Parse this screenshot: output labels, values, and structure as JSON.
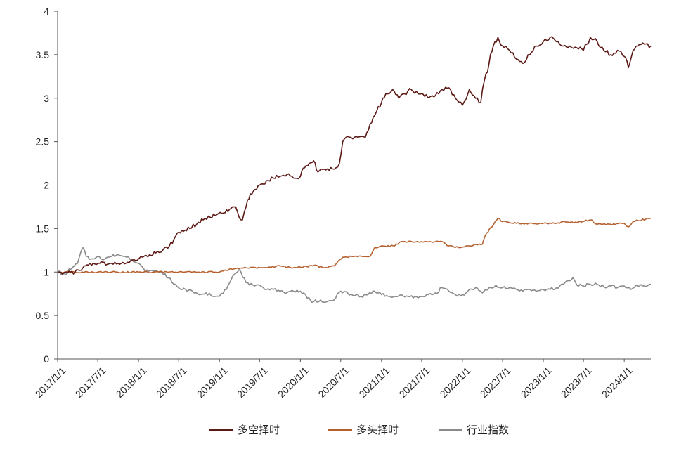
{
  "chart_data": {
    "type": "line",
    "title": "",
    "xlabel": "",
    "ylabel": "",
    "ylim": [
      0,
      4
    ],
    "yticks": [
      {
        "value": 0,
        "label": "0"
      },
      {
        "value": 0.5,
        "label": "0.5"
      },
      {
        "value": 1,
        "label": "1"
      },
      {
        "value": 1.5,
        "label": "1.5"
      },
      {
        "value": 2,
        "label": "2"
      },
      {
        "value": 2.5,
        "label": "2.5"
      },
      {
        "value": 3,
        "label": "3"
      },
      {
        "value": 3.5,
        "label": "3.5"
      },
      {
        "value": 4,
        "label": "4"
      }
    ],
    "xlim": [
      "2017/1/1",
      "2024/4/30"
    ],
    "xticks": [
      "2017/1/1",
      "2017/7/1",
      "2018/1/1",
      "2018/7/1",
      "2019/1/1",
      "2019/7/1",
      "2020/1/1",
      "2020/7/1",
      "2021/1/1",
      "2021/7/1",
      "2022/1/1",
      "2022/7/1",
      "2023/1/1",
      "2023/7/1",
      "2024/1/1"
    ],
    "grid": false,
    "legend_position": "bottom",
    "series": [
      {
        "name": "多空择时",
        "color": "#5c1a16",
        "points": [
          [
            "2017/1/1",
            1.0
          ],
          [
            "2017/2/15",
            0.99
          ],
          [
            "2017/3/20",
            1.0
          ],
          [
            "2017/4/10",
            1.02
          ],
          [
            "2017/4/25",
            1.05
          ],
          [
            "2017/5/20",
            1.08
          ],
          [
            "2017/6/10",
            1.1
          ],
          [
            "2017/7/10",
            1.1
          ],
          [
            "2017/9/1",
            1.1
          ],
          [
            "2017/10/15",
            1.1
          ],
          [
            "2017/11/20",
            1.11
          ],
          [
            "2017/12/20",
            1.13
          ],
          [
            "2018/1/20",
            1.17
          ],
          [
            "2018/2/20",
            1.2
          ],
          [
            "2018/3/20",
            1.22
          ],
          [
            "2018/4/20",
            1.25
          ],
          [
            "2018/5/20",
            1.3
          ],
          [
            "2018/6/10",
            1.38
          ],
          [
            "2018/6/25",
            1.45
          ],
          [
            "2018/7/15",
            1.48
          ],
          [
            "2018/8/20",
            1.5
          ],
          [
            "2018/9/20",
            1.55
          ],
          [
            "2018/10/20",
            1.6
          ],
          [
            "2018/11/20",
            1.63
          ],
          [
            "2018/12/20",
            1.66
          ],
          [
            "2019/1/20",
            1.68
          ],
          [
            "2019/2/15",
            1.72
          ],
          [
            "2019/3/15",
            1.75
          ],
          [
            "2019/4/1",
            1.62
          ],
          [
            "2019/4/15",
            1.6
          ],
          [
            "2019/5/1",
            1.75
          ],
          [
            "2019/5/20",
            1.9
          ],
          [
            "2019/6/10",
            1.95
          ],
          [
            "2019/7/1",
            2.0
          ],
          [
            "2019/8/1",
            2.05
          ],
          [
            "2019/9/1",
            2.08
          ],
          [
            "2019/10/1",
            2.1
          ],
          [
            "2019/11/1",
            2.12
          ],
          [
            "2019/12/1",
            2.08
          ],
          [
            "2020/1/1",
            2.1
          ],
          [
            "2020/1/20",
            2.2
          ],
          [
            "2020/2/10",
            2.25
          ],
          [
            "2020/3/1",
            2.28
          ],
          [
            "2020/3/20",
            2.15
          ],
          [
            "2020/4/10",
            2.18
          ],
          [
            "2020/5/10",
            2.17
          ],
          [
            "2020/6/10",
            2.2
          ],
          [
            "2020/6/25",
            2.25
          ],
          [
            "2020/7/10",
            2.5
          ],
          [
            "2020/7/25",
            2.55
          ],
          [
            "2020/9/1",
            2.55
          ],
          [
            "2020/10/20",
            2.55
          ],
          [
            "2020/11/10",
            2.7
          ],
          [
            "2020/12/10",
            2.85
          ],
          [
            "2021/1/1",
            2.95
          ],
          [
            "2021/1/20",
            3.05
          ],
          [
            "2021/2/20",
            3.1
          ],
          [
            "2021/3/20",
            3.0
          ],
          [
            "2021/4/15",
            3.05
          ],
          [
            "2021/5/15",
            3.1
          ],
          [
            "2021/6/15",
            3.05
          ],
          [
            "2021/7/15",
            3.02
          ],
          [
            "2021/9/1",
            3.03
          ],
          [
            "2021/10/1",
            3.1
          ],
          [
            "2021/11/1",
            3.12
          ],
          [
            "2021/12/1",
            3.0
          ],
          [
            "2022/1/1",
            2.92
          ],
          [
            "2022/2/1",
            3.1
          ],
          [
            "2022/3/1",
            3.0
          ],
          [
            "2022/3/25",
            2.95
          ],
          [
            "2022/4/10",
            3.2
          ],
          [
            "2022/5/1",
            3.4
          ],
          [
            "2022/5/20",
            3.6
          ],
          [
            "2022/6/10",
            3.7
          ],
          [
            "2022/7/1",
            3.6
          ],
          [
            "2022/8/1",
            3.55
          ],
          [
            "2022/9/1",
            3.45
          ],
          [
            "2022/10/1",
            3.4
          ],
          [
            "2022/11/1",
            3.5
          ],
          [
            "2022/12/1",
            3.6
          ],
          [
            "2023/1/1",
            3.65
          ],
          [
            "2023/2/1",
            3.7
          ],
          [
            "2023/3/1",
            3.65
          ],
          [
            "2023/4/1",
            3.6
          ],
          [
            "2023/5/1",
            3.6
          ],
          [
            "2023/6/1",
            3.58
          ],
          [
            "2023/7/1",
            3.55
          ],
          [
            "2023/8/1",
            3.7
          ],
          [
            "2023/9/1",
            3.65
          ],
          [
            "2023/10/1",
            3.55
          ],
          [
            "2023/11/1",
            3.5
          ],
          [
            "2023/12/1",
            3.55
          ],
          [
            "2024/1/1",
            3.48
          ],
          [
            "2024/1/20",
            3.35
          ],
          [
            "2024/2/10",
            3.55
          ],
          [
            "2024/3/1",
            3.6
          ],
          [
            "2024/4/1",
            3.62
          ],
          [
            "2024/4/30",
            3.6
          ]
        ]
      },
      {
        "name": "多头择时",
        "color": "#b5602f",
        "points": [
          [
            "2017/1/1",
            1.0
          ],
          [
            "2017/7/1",
            1.0
          ],
          [
            "2018/1/1",
            1.0
          ],
          [
            "2018/7/1",
            1.0
          ],
          [
            "2019/1/1",
            1.0
          ],
          [
            "2019/2/1",
            1.02
          ],
          [
            "2019/3/15",
            1.04
          ],
          [
            "2019/5/1",
            1.05
          ],
          [
            "2019/8/1",
            1.05
          ],
          [
            "2019/10/1",
            1.07
          ],
          [
            "2019/12/1",
            1.05
          ],
          [
            "2020/1/15",
            1.06
          ],
          [
            "2020/3/10",
            1.08
          ],
          [
            "2020/4/10",
            1.05
          ],
          [
            "2020/6/1",
            1.07
          ],
          [
            "2020/7/10",
            1.17
          ],
          [
            "2020/9/1",
            1.18
          ],
          [
            "2020/11/10",
            1.18
          ],
          [
            "2020/12/1",
            1.28
          ],
          [
            "2021/1/1",
            1.3
          ],
          [
            "2021/3/1",
            1.3
          ],
          [
            "2021/4/1",
            1.35
          ],
          [
            "2021/7/1",
            1.35
          ],
          [
            "2021/10/1",
            1.35
          ],
          [
            "2021/11/1",
            1.3
          ],
          [
            "2021/12/20",
            1.28
          ],
          [
            "2022/2/1",
            1.3
          ],
          [
            "2022/4/1",
            1.32
          ],
          [
            "2022/4/20",
            1.45
          ],
          [
            "2022/5/15",
            1.52
          ],
          [
            "2022/6/10",
            1.62
          ],
          [
            "2022/7/1",
            1.58
          ],
          [
            "2022/9/1",
            1.56
          ],
          [
            "2023/1/1",
            1.56
          ],
          [
            "2023/3/1",
            1.56
          ],
          [
            "2023/4/1",
            1.58
          ],
          [
            "2023/6/1",
            1.57
          ],
          [
            "2023/8/1",
            1.6
          ],
          [
            "2023/9/1",
            1.55
          ],
          [
            "2023/11/1",
            1.55
          ],
          [
            "2024/1/1",
            1.56
          ],
          [
            "2024/1/20",
            1.52
          ],
          [
            "2024/2/10",
            1.58
          ],
          [
            "2024/4/30",
            1.62
          ]
        ]
      },
      {
        "name": "行业指数",
        "color": "#8a8a8a",
        "points": [
          [
            "2017/1/1",
            1.0
          ],
          [
            "2017/2/1",
            0.98
          ],
          [
            "2017/3/1",
            1.03
          ],
          [
            "2017/4/1",
            1.1
          ],
          [
            "2017/4/25",
            1.28
          ],
          [
            "2017/5/10",
            1.18
          ],
          [
            "2017/6/1",
            1.15
          ],
          [
            "2017/7/1",
            1.18
          ],
          [
            "2017/8/1",
            1.15
          ],
          [
            "2017/9/1",
            1.18
          ],
          [
            "2017/10/1",
            1.2
          ],
          [
            "2017/11/1",
            1.18
          ],
          [
            "2017/12/1",
            1.15
          ],
          [
            "2018/1/1",
            1.1
          ],
          [
            "2018/2/1",
            1.0
          ],
          [
            "2018/3/1",
            1.02
          ],
          [
            "2018/4/1",
            1.0
          ],
          [
            "2018/5/1",
            0.98
          ],
          [
            "2018/6/1",
            0.88
          ],
          [
            "2018/7/1",
            0.82
          ],
          [
            "2018/8/1",
            0.8
          ],
          [
            "2018/9/1",
            0.78
          ],
          [
            "2018/10/1",
            0.74
          ],
          [
            "2018/11/1",
            0.76
          ],
          [
            "2018/12/1",
            0.72
          ],
          [
            "2019/1/1",
            0.72
          ],
          [
            "2019/2/1",
            0.8
          ],
          [
            "2019/3/1",
            0.95
          ],
          [
            "2019/4/1",
            1.03
          ],
          [
            "2019/5/1",
            0.88
          ],
          [
            "2019/6/1",
            0.85
          ],
          [
            "2019/7/1",
            0.85
          ],
          [
            "2019/8/1",
            0.8
          ],
          [
            "2019/9/1",
            0.8
          ],
          [
            "2019/10/1",
            0.78
          ],
          [
            "2019/11/1",
            0.76
          ],
          [
            "2019/12/1",
            0.78
          ],
          [
            "2020/1/1",
            0.78
          ],
          [
            "2020/2/1",
            0.7
          ],
          [
            "2020/3/1",
            0.66
          ],
          [
            "2020/4/1",
            0.68
          ],
          [
            "2020/5/1",
            0.66
          ],
          [
            "2020/6/1",
            0.68
          ],
          [
            "2020/7/1",
            0.78
          ],
          [
            "2020/8/1",
            0.76
          ],
          [
            "2020/9/1",
            0.73
          ],
          [
            "2020/10/1",
            0.72
          ],
          [
            "2020/11/1",
            0.74
          ],
          [
            "2020/12/1",
            0.78
          ],
          [
            "2021/1/1",
            0.74
          ],
          [
            "2021/2/1",
            0.72
          ],
          [
            "2021/3/1",
            0.72
          ],
          [
            "2021/4/1",
            0.74
          ],
          [
            "2021/5/1",
            0.72
          ],
          [
            "2021/6/1",
            0.72
          ],
          [
            "2021/7/1",
            0.72
          ],
          [
            "2021/8/1",
            0.74
          ],
          [
            "2021/9/1",
            0.76
          ],
          [
            "2021/10/1",
            0.82
          ],
          [
            "2021/11/1",
            0.78
          ],
          [
            "2021/12/1",
            0.74
          ],
          [
            "2022/1/1",
            0.74
          ],
          [
            "2022/2/1",
            0.8
          ],
          [
            "2022/3/1",
            0.82
          ],
          [
            "2022/4/1",
            0.76
          ],
          [
            "2022/5/1",
            0.82
          ],
          [
            "2022/6/1",
            0.85
          ],
          [
            "2022/7/1",
            0.82
          ],
          [
            "2022/8/1",
            0.82
          ],
          [
            "2022/9/1",
            0.8
          ],
          [
            "2022/10/1",
            0.78
          ],
          [
            "2022/11/1",
            0.8
          ],
          [
            "2022/12/1",
            0.78
          ],
          [
            "2023/1/1",
            0.8
          ],
          [
            "2023/2/1",
            0.8
          ],
          [
            "2023/3/1",
            0.82
          ],
          [
            "2023/4/1",
            0.86
          ],
          [
            "2023/5/1",
            0.9
          ],
          [
            "2023/5/15",
            0.94
          ],
          [
            "2023/6/1",
            0.85
          ],
          [
            "2023/7/1",
            0.84
          ],
          [
            "2023/8/1",
            0.86
          ],
          [
            "2023/9/1",
            0.86
          ],
          [
            "2023/10/1",
            0.83
          ],
          [
            "2023/11/1",
            0.84
          ],
          [
            "2023/12/1",
            0.82
          ],
          [
            "2024/1/1",
            0.84
          ],
          [
            "2024/2/1",
            0.8
          ],
          [
            "2024/3/1",
            0.84
          ],
          [
            "2024/4/1",
            0.84
          ],
          [
            "2024/4/30",
            0.86
          ]
        ]
      }
    ]
  }
}
